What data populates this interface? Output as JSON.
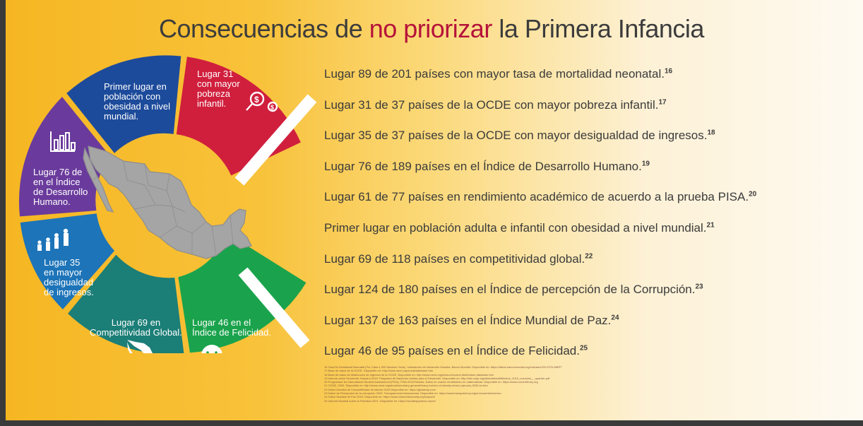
{
  "title": {
    "part1": "Consecuencias de ",
    "highlight": "no priorizar",
    "part2": " la Primera Infancia"
  },
  "colors": {
    "title_highlight": "#b5123a",
    "seg_red": "#d01f3d",
    "seg_blue": "#1d4b9b",
    "seg_purple": "#6a3b9c",
    "seg_sky": "#1d74b8",
    "seg_teal": "#1b7e77",
    "seg_green": "#1aa34c",
    "map_fill": "#a5a5a5"
  },
  "segments": {
    "red": [
      "Lugar 31",
      "con mayor",
      "pobreza",
      "infantil."
    ],
    "blue": [
      "Primer lugar en",
      "población con",
      "obesidad a nivel",
      "mundial."
    ],
    "purple": [
      "Lugar 76 de",
      "en el Índice",
      "de Desarrollo",
      "Humano."
    ],
    "sky": [
      "Lugar 35",
      "en mayor",
      "desigualdad",
      "de ingresos."
    ],
    "teal": [
      "Lugar 69 en",
      "Competitividad Global."
    ],
    "green": [
      "Lugar 46 en el",
      "Índice de Felicidad."
    ]
  },
  "icons": {
    "red": "money-search-icon",
    "purple": "bar-chart-icon",
    "sky": "people-icon",
    "teal": "mexico-map-icon",
    "green": "sad-face-icon"
  },
  "facts": [
    {
      "text": "Lugar 89 de 201 países con mayor tasa de mortalidad neonatal.",
      "ref": "16"
    },
    {
      "text": "Lugar 31 de 37 países de la OCDE con mayor pobreza infantil.",
      "ref": "17"
    },
    {
      "text": "Lugar 35 de 37 países de la OCDE con mayor desigualdad de ingresos.",
      "ref": "18"
    },
    {
      "text": "Lugar 76 de 189 países en el Índice de Desarrollo Humano.",
      "ref": "19"
    },
    {
      "text": "Lugar 61 de 77 países en rendimiento académico de acuerdo a la prueba PISA.",
      "ref": "20"
    },
    {
      "text": "Primer lugar en población adulta e infantil con obesidad a nivel mundial.",
      "ref": "21"
    },
    {
      "text": "Lugar 69 de 118 países en competitividad global.",
      "ref": "22"
    },
    {
      "text": "Lugar 124 de 180 países en el Índice de percepción de la Corrupción.",
      "ref": "23"
    },
    {
      "text": "Lugar 137 de 163 países en el Índice Mundial de Paz.",
      "ref": "24"
    },
    {
      "text": "Lugar 46 de 95 países en el Índice de Felicidad.",
      "ref": "25"
    }
  ],
  "footnotes": [
    "16 Tasa De Mortalidad Neonatal (Por Cada 1,000 Nacidos Vivos). Indicadores del desarrollo Mundial. Banco Mundial. Disponible en: https://datos.bancomundial.org/indicador/SH.DYN.NMRT",
    "17 Base de datos de la OCDE. Disponible en: http://www.oecd.org/social/database.htm",
    "18 Base de datos de distribución de ingresos de la OCDE. Disponible en: http://www.oecd.org/els/soc/income-distribution-database.htm",
    "19 Informe sobre Desarrollo Humano 2019. Programa de Naciones Unidas para el Desarrollo. Disponible en: http://hdr.undp.org/sites/default/files/hdr_2019_overview_-_spanish.pdf",
    "20 Programme for International Student Assessment (PISA). PISA 2018 Results. Datos en cuanto rendimiento en matemáticas. Disponible en: https://www.oecd-ilibrary.org",
    "21 OCDE, 2020. Disponible en: http://www.oecd.org/about/secretary-general/heavy-burden-of-obesity-mexico-january-2020-es.htm",
    "22 Índice Mundial de Competitividad de talento 2020 Disponible en: https://gtcistudy.com/",
    "23 Índice de Percepción de la corrupción 2020. Transparencia Internacional. Disponible en: https://www.transparency.org/en/countries/mexico",
    "24 Índice Mundial de Paz 2020. Disponible en: https://www.visionofhumanity.org/maps/#/",
    "25 Informe Mundial sobre la Felicidad 2021. Disponible en: https://worldhappiness.report/"
  ]
}
